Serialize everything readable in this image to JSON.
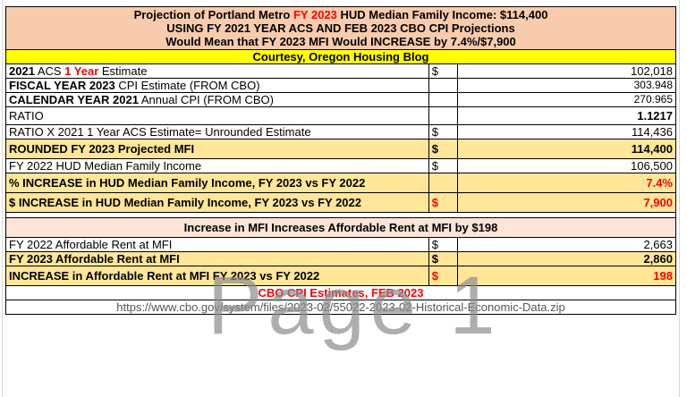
{
  "title": {
    "line1_prefix": "Projection of Portland Metro ",
    "line1_red": "FY 2023",
    "line1_suffix": " HUD Median Family Income: $114,400",
    "line2": "USING FY 2021 YEAR ACS AND FEB 2023 CBO CPI Projections",
    "line3": "Would Mean that FY 2023 MFI Would INCREASE by 7.4%/$7,900"
  },
  "courtesy": "Courtesy, Oregon Housing Blog",
  "rows": {
    "acs": {
      "label_a": "2021",
      "label_b": " ACS ",
      "label_red": "1 Year",
      "label_c": " Estimate",
      "dollar": "$",
      "value": "102,018"
    },
    "fy_cpi": {
      "label_bold": "FISCAL YEAR 2023",
      "label_rest": " CPI Estimate (FROM CBO)",
      "value": "303.948"
    },
    "cy_cpi": {
      "label_bold": "CALENDAR YEAR 2021",
      "label_rest": " Annual CPI (FROM CBO)",
      "value": "270.965"
    },
    "ratio": {
      "label": "RATIO",
      "value": "1.1217"
    },
    "unrounded": {
      "label": "RATIO X 2021 1 Year ACS Estimate= Unrounded Estimate",
      "dollar": "$",
      "value": "114,436"
    },
    "rounded": {
      "label": "ROUNDED FY 2023 Projected MFI",
      "dollar": "$",
      "value": "114,400"
    },
    "fy22": {
      "label": "FY 2022 HUD Median Family Income",
      "dollar": "$",
      "value": "106,500"
    },
    "pct": {
      "label": "% INCREASE in HUD Median Family Income, FY 2023 vs FY 2022",
      "value": "7.4%"
    },
    "dollar_inc": {
      "label": "$ INCREASE in HUD Median Family Income, FY 2023 vs FY 2022",
      "dollar": "$",
      "value": "7,900"
    }
  },
  "rent_header": "Increase in MFI Increases Affordable Rent at MFI by $198",
  "rent_rows": {
    "fy22": {
      "label": "FY 2022 Affordable Rent at MFI",
      "dollar": "$",
      "value": "2,663"
    },
    "fy23": {
      "label": "FY 2023 Affordable Rent at MFI",
      "dollar": "$",
      "value": "2,860"
    },
    "inc": {
      "label": "INCREASE in Affordable Rent at MFI FY 2023 vs FY 2022",
      "dollar": "$",
      "value": "198"
    }
  },
  "source": "CBO CPI Estimates, FEB 2023",
  "url": "https://www.cbo.gov/system/files/2023-02/55022-2023-02-Historical-Economic-Data.zip",
  "watermark": "Page 1",
  "colors": {
    "title_bg": "#f8cbad",
    "courtesy_bg": "#ffff00",
    "highlight_bg": "#ffe699",
    "red": "#ff0000"
  }
}
